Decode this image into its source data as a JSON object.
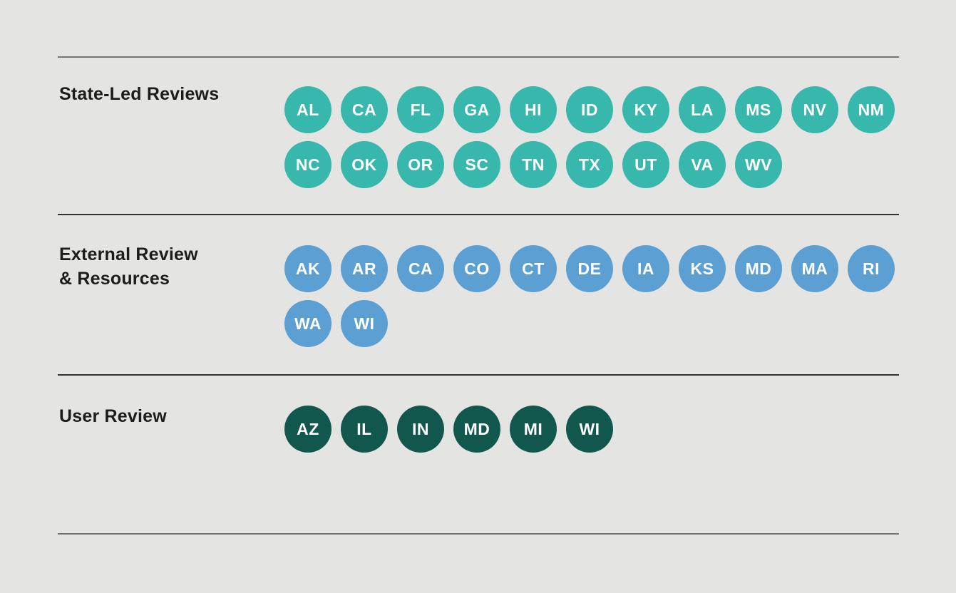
{
  "page": {
    "background": "#e4e4e3"
  },
  "colors": {
    "divider_outer": "#757575",
    "divider_inner": "#333333",
    "label_text": "#1c1c1c",
    "circle_text": "#ffffff",
    "state_led": "#38b7ac",
    "external": "#5b9fd3",
    "user": "#11574e"
  },
  "sections": [
    {
      "label": "State-Led Reviews",
      "color": "#38b7ac",
      "states": [
        "AL",
        "CA",
        "FL",
        "GA",
        "HI",
        "ID",
        "KY",
        "LA",
        "MS",
        "NV",
        "NM",
        "NC",
        "OK",
        "OR",
        "SC",
        "TN",
        "TX",
        "UT",
        "VA",
        "WV"
      ]
    },
    {
      "label": "External Review\n& Resources",
      "color": "#5b9fd3",
      "states": [
        "AK",
        "AR",
        "CA",
        "CO",
        "CT",
        "DE",
        "IA",
        "KS",
        "MD",
        "MA",
        "RI",
        "WA",
        "WI"
      ]
    },
    {
      "label": "User Review",
      "color": "#11574e",
      "states": [
        "AZ",
        "IL",
        "IN",
        "MD",
        "MI",
        "WI"
      ]
    }
  ]
}
